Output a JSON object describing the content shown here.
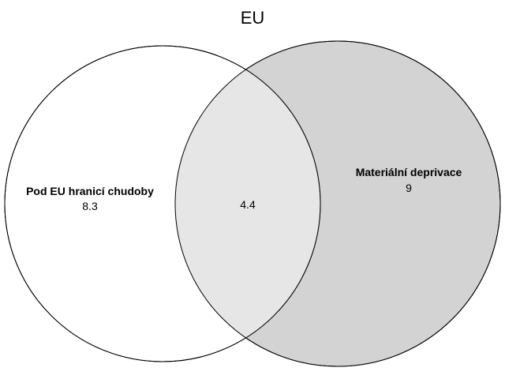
{
  "title": "EU",
  "sets": {
    "left": {
      "name": "Pod EU hranicí chudoby",
      "value": "8.3",
      "fill": "#ffffff"
    },
    "right": {
      "name": "Materiální deprivace",
      "value": "9",
      "fill": "#d3d3d3"
    }
  },
  "intersection": {
    "value": "4.4",
    "fill": "#e6e6e6"
  },
  "stroke_color": "#000000"
}
